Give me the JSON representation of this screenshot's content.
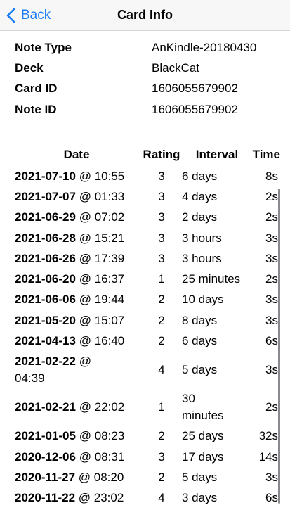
{
  "nav": {
    "back_label": "Back",
    "title": "Card Info"
  },
  "info": [
    {
      "key": "Note Type",
      "value": "AnKindle-20180430"
    },
    {
      "key": "Deck",
      "value": "BlackCat"
    },
    {
      "key": "Card ID",
      "value": "1606055679902"
    },
    {
      "key": "Note ID",
      "value": "1606055679902"
    }
  ],
  "table": {
    "headers": {
      "date": "Date",
      "rating": "Rating",
      "interval": "Interval",
      "time": "Time"
    },
    "rows": [
      {
        "date": "2021-07-10",
        "time_of_day": "10:55",
        "rating": "3",
        "interval": "6 days",
        "time": "8s"
      },
      {
        "date": "2021-07-07",
        "time_of_day": "01:33",
        "rating": "3",
        "interval": "4 days",
        "time": "2s"
      },
      {
        "date": "2021-06-29",
        "time_of_day": "07:02",
        "rating": "3",
        "interval": "2 days",
        "time": "2s"
      },
      {
        "date": "2021-06-28",
        "time_of_day": "15:21",
        "rating": "3",
        "interval": "3 hours",
        "time": "3s"
      },
      {
        "date": "2021-06-26",
        "time_of_day": "17:39",
        "rating": "3",
        "interval": "3 hours",
        "time": "3s"
      },
      {
        "date": "2021-06-20",
        "time_of_day": "16:37",
        "rating": "1",
        "interval": "25 minutes",
        "time": "2s"
      },
      {
        "date": "2021-06-06",
        "time_of_day": "19:44",
        "rating": "2",
        "interval": "10 days",
        "time": "3s"
      },
      {
        "date": "2021-05-20",
        "time_of_day": "15:07",
        "rating": "2",
        "interval": "8 days",
        "time": "3s"
      },
      {
        "date": "2021-04-13",
        "time_of_day": "16:40",
        "rating": "2",
        "interval": "6 days",
        "time": "6s"
      },
      {
        "date": "2021-02-22",
        "time_of_day": "04:39",
        "rating": "4",
        "interval": "5 days",
        "time": "3s"
      },
      {
        "date": "2021-02-21",
        "time_of_day": "22:02",
        "rating": "1",
        "interval": "30 minutes",
        "time": "2s"
      },
      {
        "date": "2021-01-05",
        "time_of_day": "08:23",
        "rating": "2",
        "interval": "25 days",
        "time": "32s"
      },
      {
        "date": "2020-12-06",
        "time_of_day": "08:31",
        "rating": "3",
        "interval": "17 days",
        "time": "14s"
      },
      {
        "date": "2020-11-27",
        "time_of_day": "08:20",
        "rating": "2",
        "interval": "5 days",
        "time": "3s"
      },
      {
        "date": "2020-11-22",
        "time_of_day": "23:02",
        "rating": "4",
        "interval": "3 days",
        "time": "6s"
      }
    ]
  },
  "colors": {
    "accent": "#1a7cf5",
    "navbar_bg": "#f7f7f8"
  },
  "icons": {
    "back": "chevron-left-icon"
  }
}
